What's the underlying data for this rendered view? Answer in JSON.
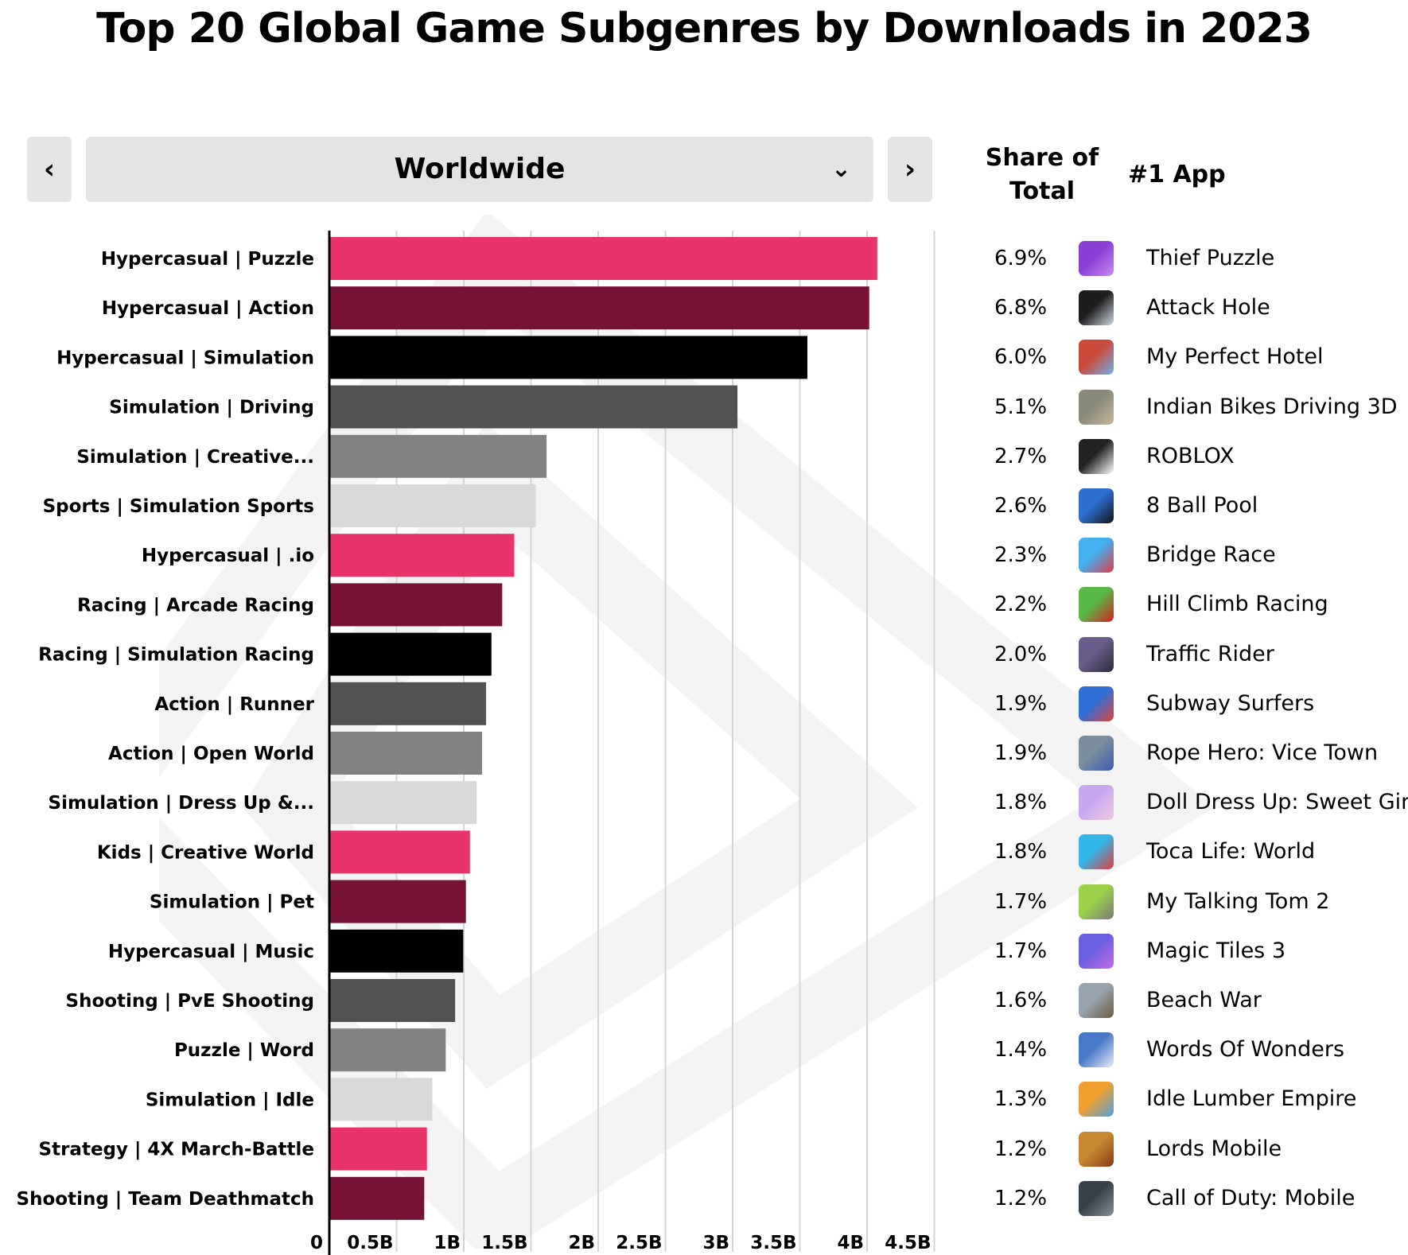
{
  "title": "Top 20 Global Game Subgenres by Downloads in 2023",
  "region_selector": {
    "selected": "Worldwide",
    "prev_glyph": "‹",
    "next_glyph": "›",
    "dropdown_glyph": "⌄"
  },
  "table_headers": {
    "share_line1": "Share of",
    "share_line2": "Total",
    "app": "#1 App"
  },
  "chart_data": {
    "type": "bar",
    "orientation": "horizontal",
    "title": "Top 20 Global Game Subgenres by Downloads in 2023",
    "xlabel": "",
    "ylabel": "",
    "xlim": [
      0,
      4.5
    ],
    "x_ticks": [
      0,
      0.5,
      1,
      1.5,
      2,
      2.5,
      3,
      3.5,
      4,
      4.5
    ],
    "x_tick_labels": [
      "0",
      "0.5B",
      "1B",
      "1.5B",
      "2B",
      "2.5B",
      "3B",
      "3.5B",
      "4B",
      "4.5B"
    ],
    "grid": "vertical",
    "categories": [
      "Hypercasual | Puzzle",
      "Hypercasual | Action",
      "Hypercasual | Simulation",
      "Simulation | Driving",
      "Simulation | Creative...",
      "Sports | Simulation Sports",
      "Hypercasual | .io",
      "Racing | Arcade Racing",
      "Racing | Simulation Racing",
      "Action | Runner",
      "Action | Open World",
      "Simulation | Dress Up &...",
      "Kids | Creative World",
      "Simulation | Pet",
      "Hypercasual | Music",
      "Shooting | PvE Shooting",
      "Puzzle | Word",
      "Simulation | Idle",
      "Strategy | 4X March-Battle",
      "Shooting | Team Deathmatch"
    ],
    "values": [
      4.07,
      4.01,
      3.55,
      3.03,
      1.61,
      1.53,
      1.37,
      1.28,
      1.2,
      1.16,
      1.13,
      1.09,
      1.04,
      1.01,
      0.99,
      0.93,
      0.86,
      0.76,
      0.72,
      0.7
    ],
    "colors": [
      "#e8346b",
      "#751235",
      "#000000",
      "#525252",
      "#828282",
      "#d9d9d9"
    ]
  },
  "rows": [
    {
      "share": "6.9%",
      "app": "Thief Puzzle",
      "icon": "thief-puzzle-icon",
      "icon_colors": [
        "#8a3fd6",
        "#c98af0"
      ]
    },
    {
      "share": "6.8%",
      "app": "Attack Hole",
      "icon": "attack-hole-icon",
      "icon_colors": [
        "#1c1c1c",
        "#cfd8e0"
      ]
    },
    {
      "share": "6.0%",
      "app": "My Perfect Hotel",
      "icon": "my-perfect-hotel-icon",
      "icon_colors": [
        "#c94a3a",
        "#6fb0e8"
      ]
    },
    {
      "share": "5.1%",
      "app": "Indian Bikes Driving 3D",
      "icon": "indian-bikes-icon",
      "icon_colors": [
        "#8a8a7a",
        "#c9b89a"
      ]
    },
    {
      "share": "2.7%",
      "app": "ROBLOX",
      "icon": "roblox-icon",
      "icon_colors": [
        "#222222",
        "#ffffff"
      ]
    },
    {
      "share": "2.6%",
      "app": "8 Ball Pool",
      "icon": "8-ball-pool-icon",
      "icon_colors": [
        "#2d6fd1",
        "#111111"
      ]
    },
    {
      "share": "2.3%",
      "app": "Bridge Race",
      "icon": "bridge-race-icon",
      "icon_colors": [
        "#43b0f0",
        "#e23a4a"
      ]
    },
    {
      "share": "2.2%",
      "app": "Hill Climb Racing",
      "icon": "hill-climb-racing-icon",
      "icon_colors": [
        "#58b947",
        "#d62020"
      ]
    },
    {
      "share": "2.0%",
      "app": "Traffic Rider",
      "icon": "traffic-rider-icon",
      "icon_colors": [
        "#6a5d8c",
        "#2a2a3a"
      ]
    },
    {
      "share": "1.9%",
      "app": "Subway Surfers",
      "icon": "subway-surfers-icon",
      "icon_colors": [
        "#2f6fd6",
        "#e04040"
      ]
    },
    {
      "share": "1.9%",
      "app": "Rope Hero: Vice Town",
      "icon": "rope-hero-icon",
      "icon_colors": [
        "#7a8ea0",
        "#3a5ab0"
      ]
    },
    {
      "share": "1.8%",
      "app": "Doll Dress Up: Sweet Girl",
      "icon": "doll-dress-up-icon",
      "icon_colors": [
        "#c8a8f0",
        "#f0c8e0"
      ]
    },
    {
      "share": "1.8%",
      "app": "Toca Life: World",
      "icon": "toca-life-icon",
      "icon_colors": [
        "#35b6e8",
        "#e23b3b"
      ]
    },
    {
      "share": "1.7%",
      "app": "My Talking Tom 2",
      "icon": "my-talking-tom-icon",
      "icon_colors": [
        "#9bd24a",
        "#7a7a7a"
      ]
    },
    {
      "share": "1.7%",
      "app": "Magic Tiles 3",
      "icon": "magic-tiles-icon",
      "icon_colors": [
        "#6a5fe0",
        "#c86ae8"
      ]
    },
    {
      "share": "1.6%",
      "app": "Beach War",
      "icon": "beach-war-icon",
      "icon_colors": [
        "#9aa4b0",
        "#6b5a40"
      ]
    },
    {
      "share": "1.4%",
      "app": "Words Of Wonders",
      "icon": "words-of-wonders-icon",
      "icon_colors": [
        "#4a78c8",
        "#e8eef8"
      ]
    },
    {
      "share": "1.3%",
      "app": "Idle Lumber Empire",
      "icon": "idle-lumber-icon",
      "icon_colors": [
        "#f0a030",
        "#4aa0e0"
      ]
    },
    {
      "share": "1.2%",
      "app": "Lords Mobile",
      "icon": "lords-mobile-icon",
      "icon_colors": [
        "#c88a30",
        "#8a3a1a"
      ]
    },
    {
      "share": "1.2%",
      "app": "Call of Duty: Mobile",
      "icon": "call-of-duty-icon",
      "icon_colors": [
        "#3a4048",
        "#8a9098"
      ]
    }
  ]
}
